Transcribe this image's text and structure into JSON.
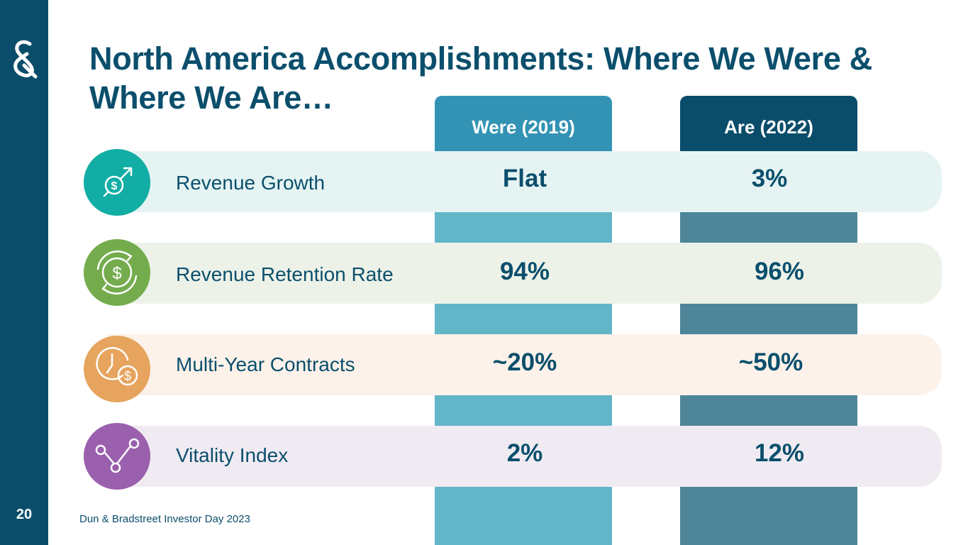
{
  "slide": {
    "title": "North America Accomplishments: Where We Were & Where We Are…",
    "page_number": "20",
    "footer": "Dun & Bradstreet Investor Day 2023"
  },
  "columns": {
    "were": "Were (2019)",
    "are": "Are (2022)"
  },
  "rows": [
    {
      "label": "Revenue Growth",
      "icon": "dollar-growth-icon",
      "were": "Flat",
      "are": "3%"
    },
    {
      "label": "Revenue Retention Rate",
      "icon": "dollar-cycle-icon",
      "were": "94%",
      "are": "96%"
    },
    {
      "label": "Multi-Year Contracts",
      "icon": "clock-dollar-icon",
      "were": "~20%",
      "are": "~50%"
    },
    {
      "label": "Vitality Index",
      "icon": "trend-line-icon",
      "were": "2%",
      "are": "12%"
    }
  ],
  "colors": {
    "brand": "#0a4d6b",
    "were_header": "#3293b4",
    "were_column": "#63b5c8",
    "are_column": "#4f8599",
    "revenue_growth": "#12ada4",
    "revenue_retention": "#74ac4d",
    "multi_year": "#e6a45e",
    "vitality": "#9a5fad"
  }
}
